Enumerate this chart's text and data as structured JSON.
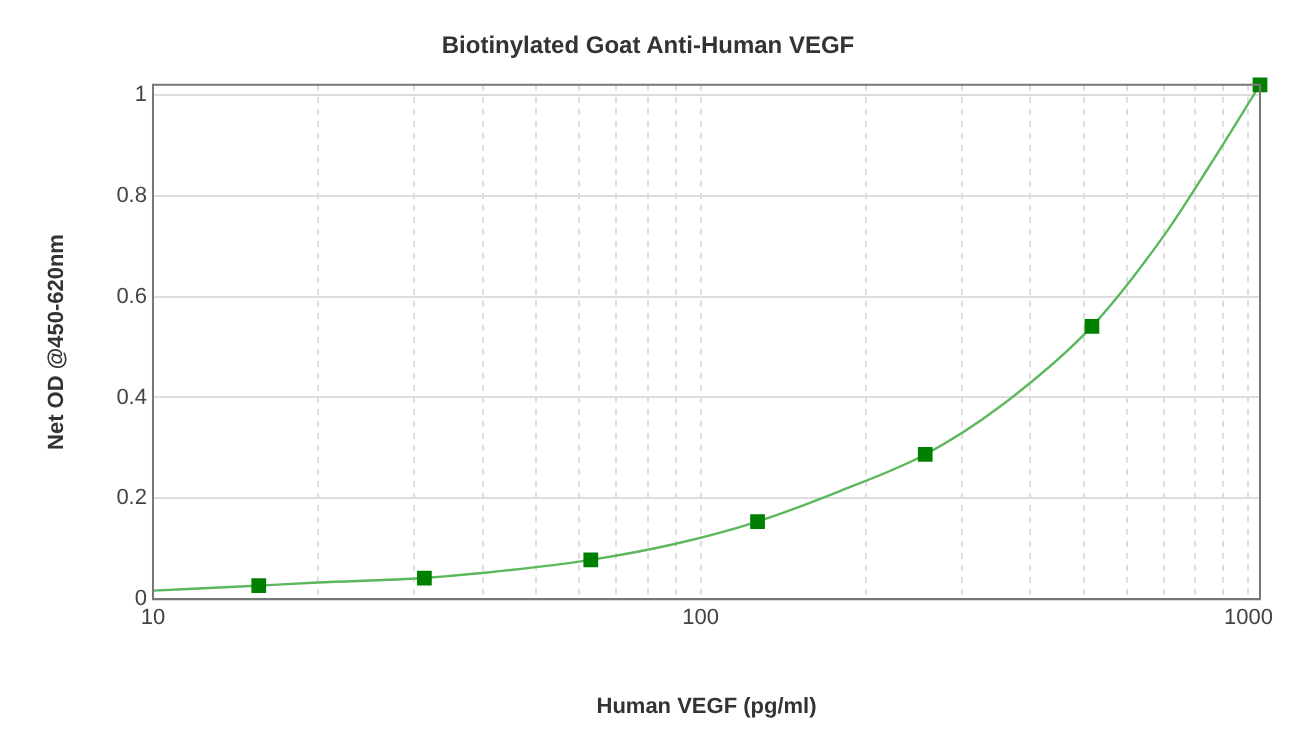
{
  "chart_data": {
    "type": "scatter",
    "title": "Biotinylated Goat Anti-Human VEGF",
    "xlabel": "Human VEGF (pg/ml)",
    "ylabel": "Net OD @450-620nm",
    "log": "x",
    "xlim": [
      10,
      1050
    ],
    "xticks": [
      10,
      {
        "value": 20,
        "label": null
      },
      {
        "value": 30,
        "label": null
      },
      {
        "value": 40,
        "label": null
      },
      {
        "value": 50,
        "label": null
      },
      {
        "value": 60,
        "label": null
      },
      {
        "value": 70,
        "label": null
      },
      {
        "value": 80,
        "label": null
      },
      {
        "value": 90,
        "label": null
      },
      100,
      {
        "value": 200,
        "label": null
      },
      {
        "value": 300,
        "label": null
      },
      {
        "value": 400,
        "label": null
      },
      {
        "value": 500,
        "label": null
      },
      {
        "value": 600,
        "label": null
      },
      {
        "value": 700,
        "label": null
      },
      {
        "value": 800,
        "label": null
      },
      {
        "value": 900,
        "label": null
      },
      1000
    ],
    "ylim": [
      0,
      1.02
    ],
    "yticks": [
      0,
      0.2,
      0.4,
      0.6,
      0.8,
      1
    ],
    "grid": true,
    "legend": false,
    "series": [
      {
        "type": "line",
        "color": "#5cb85c",
        "marker": "none",
        "x": [
          10,
          15.6,
          20,
          31.3,
          45,
          63,
          90,
          127,
          180,
          257,
          350,
          518,
          700,
          850,
          1050
        ],
        "values": [
          0.017,
          0.027,
          0.033,
          0.042,
          0.058,
          0.078,
          0.11,
          0.154,
          0.215,
          0.287,
          0.38,
          0.541,
          0.72,
          0.86,
          1.02
        ]
      },
      {
        "color": "#008000",
        "marker": "square",
        "x": [
          15.6,
          31.3,
          63,
          127,
          257,
          518,
          1050
        ],
        "values": [
          0.027,
          0.042,
          0.078,
          0.154,
          0.287,
          0.541,
          1.02
        ]
      }
    ]
  }
}
